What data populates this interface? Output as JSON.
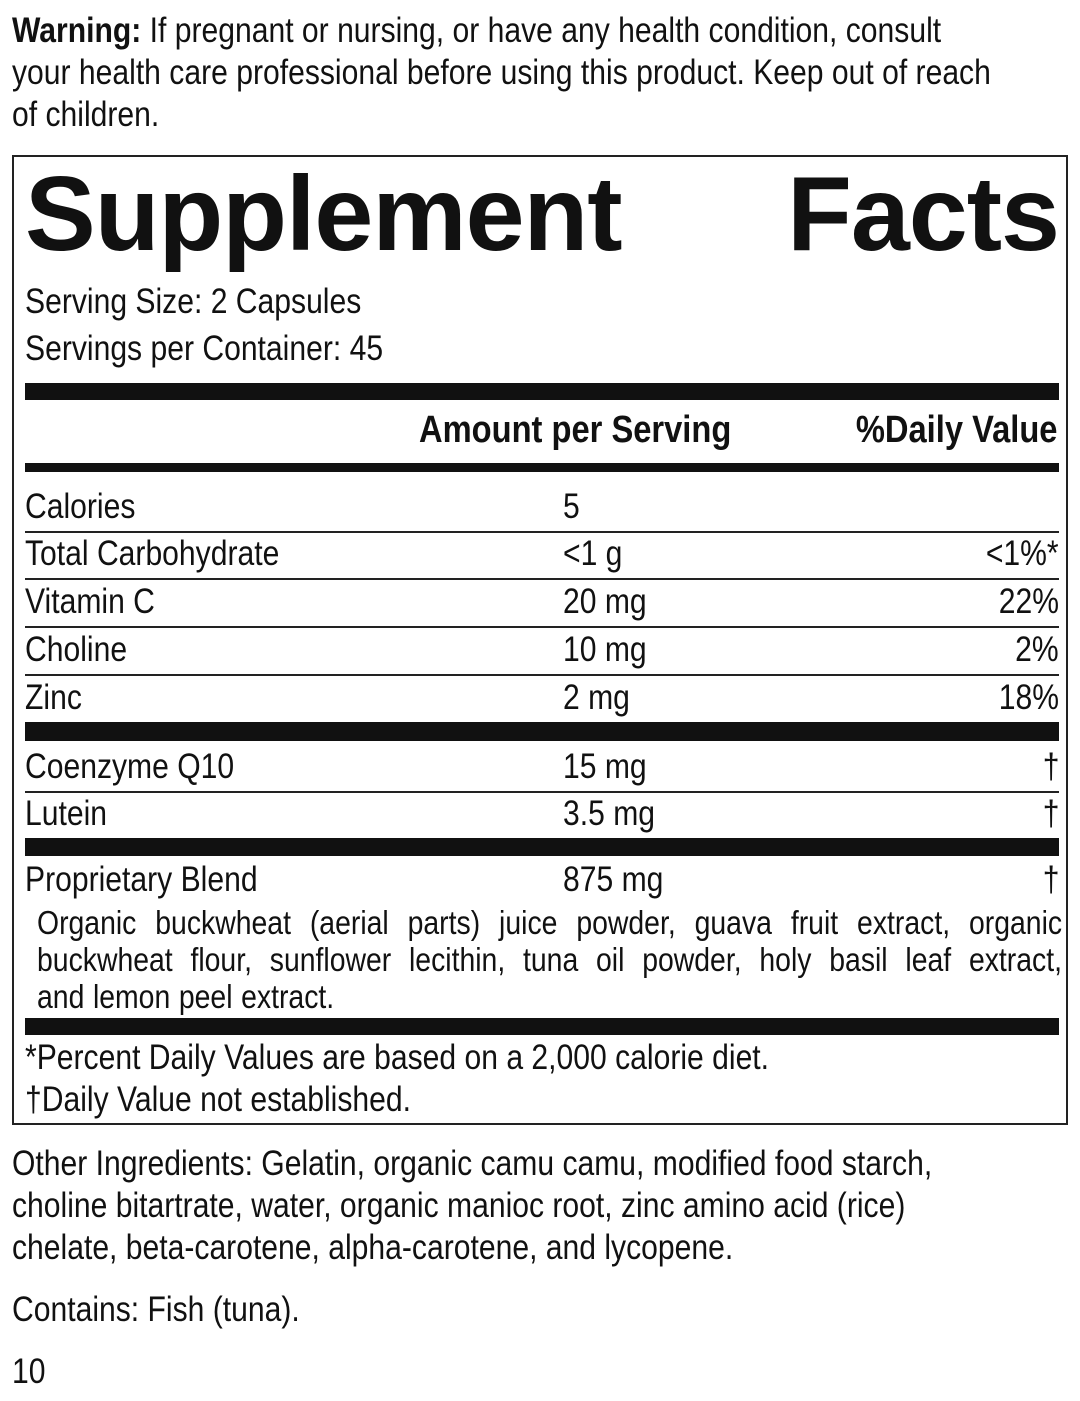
{
  "warning": {
    "label": "Warning:",
    "lines": [
      " If pregnant or nursing, or have any health condition, consult",
      "your health care professional before using this product. Keep out of reach",
      "of children."
    ]
  },
  "facts": {
    "title_words": [
      "Supplement",
      "Facts"
    ],
    "serving_size": "Serving Size: 2 Capsules",
    "servings_per_container": "Servings per Container: 45",
    "header": {
      "amount": "Amount per Serving",
      "dv": "%Daily Value"
    },
    "rows": [
      {
        "name": "Calories",
        "amount": "5",
        "dv": ""
      },
      {
        "name": "Total Carbohydrate",
        "amount": "<1 g",
        "dv": "<1%*"
      },
      {
        "name": "Vitamin C",
        "amount": "20 mg",
        "dv": "22%"
      },
      {
        "name": "Choline",
        "amount": "10 mg",
        "dv": "2%"
      },
      {
        "name": "Zinc",
        "amount": "2 mg",
        "dv": "18%"
      },
      {
        "name": "Coenzyme Q10",
        "amount": "15 mg",
        "dv": "†"
      },
      {
        "name": "Lutein",
        "amount": "3.5 mg",
        "dv": "†"
      },
      {
        "name": "Proprietary Blend",
        "amount": "875 mg",
        "dv": "†"
      }
    ],
    "blend_lines": [
      "Organic buckwheat (aerial parts) juice powder, guava fruit extract, organic",
      "buckwheat flour, sunflower lecithin, tuna oil powder, holy basil leaf extract,",
      "and lemon peel extract."
    ],
    "footnotes": [
      "*Percent Daily Values are based on a 2,000 calorie diet.",
      "†Daily Value not established."
    ]
  },
  "other_ingredients": [
    "Other Ingredients: Gelatin, organic camu camu, modified food starch,",
    "choline bitartrate, water, organic manioc root, zinc amino acid (rice)",
    "chelate, beta-carotene, alpha-carotene, and lycopene."
  ],
  "contains": "Contains: Fish (tuna).",
  "page_number": "10"
}
